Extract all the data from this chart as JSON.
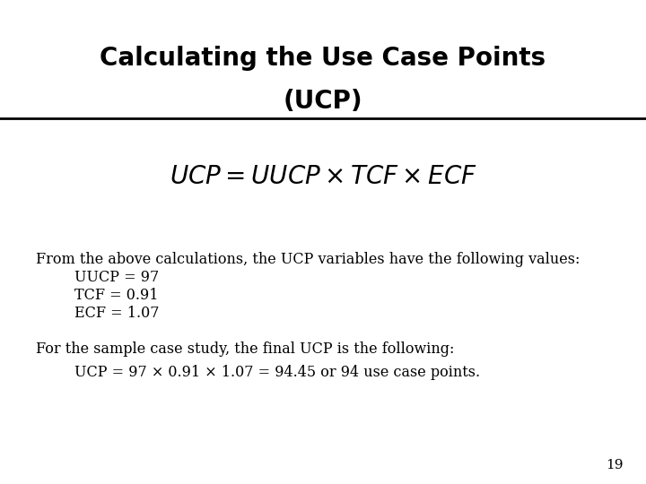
{
  "title_line1": "Calculating the Use Case Points",
  "title_line2": "(UCP)",
  "body_line1": "From the above calculations, the UCP variables have the following values:",
  "body_line2": "UUCP = 97",
  "body_line3": "TCF = 0.91",
  "body_line4": "ECF = 1.07",
  "body_line5": "For the sample case study, the final UCP is the following:",
  "body_line6": "UCP = 97 × 0.91 × 1.07 = 94.45 or 94 use case points.",
  "page_number": "19",
  "bg_color": "#ffffff",
  "title_color": "#000000",
  "text_color": "#000000",
  "title_fontsize": 20,
  "formula_fontsize": 20,
  "body_fontsize": 11.5,
  "page_num_fontsize": 11
}
